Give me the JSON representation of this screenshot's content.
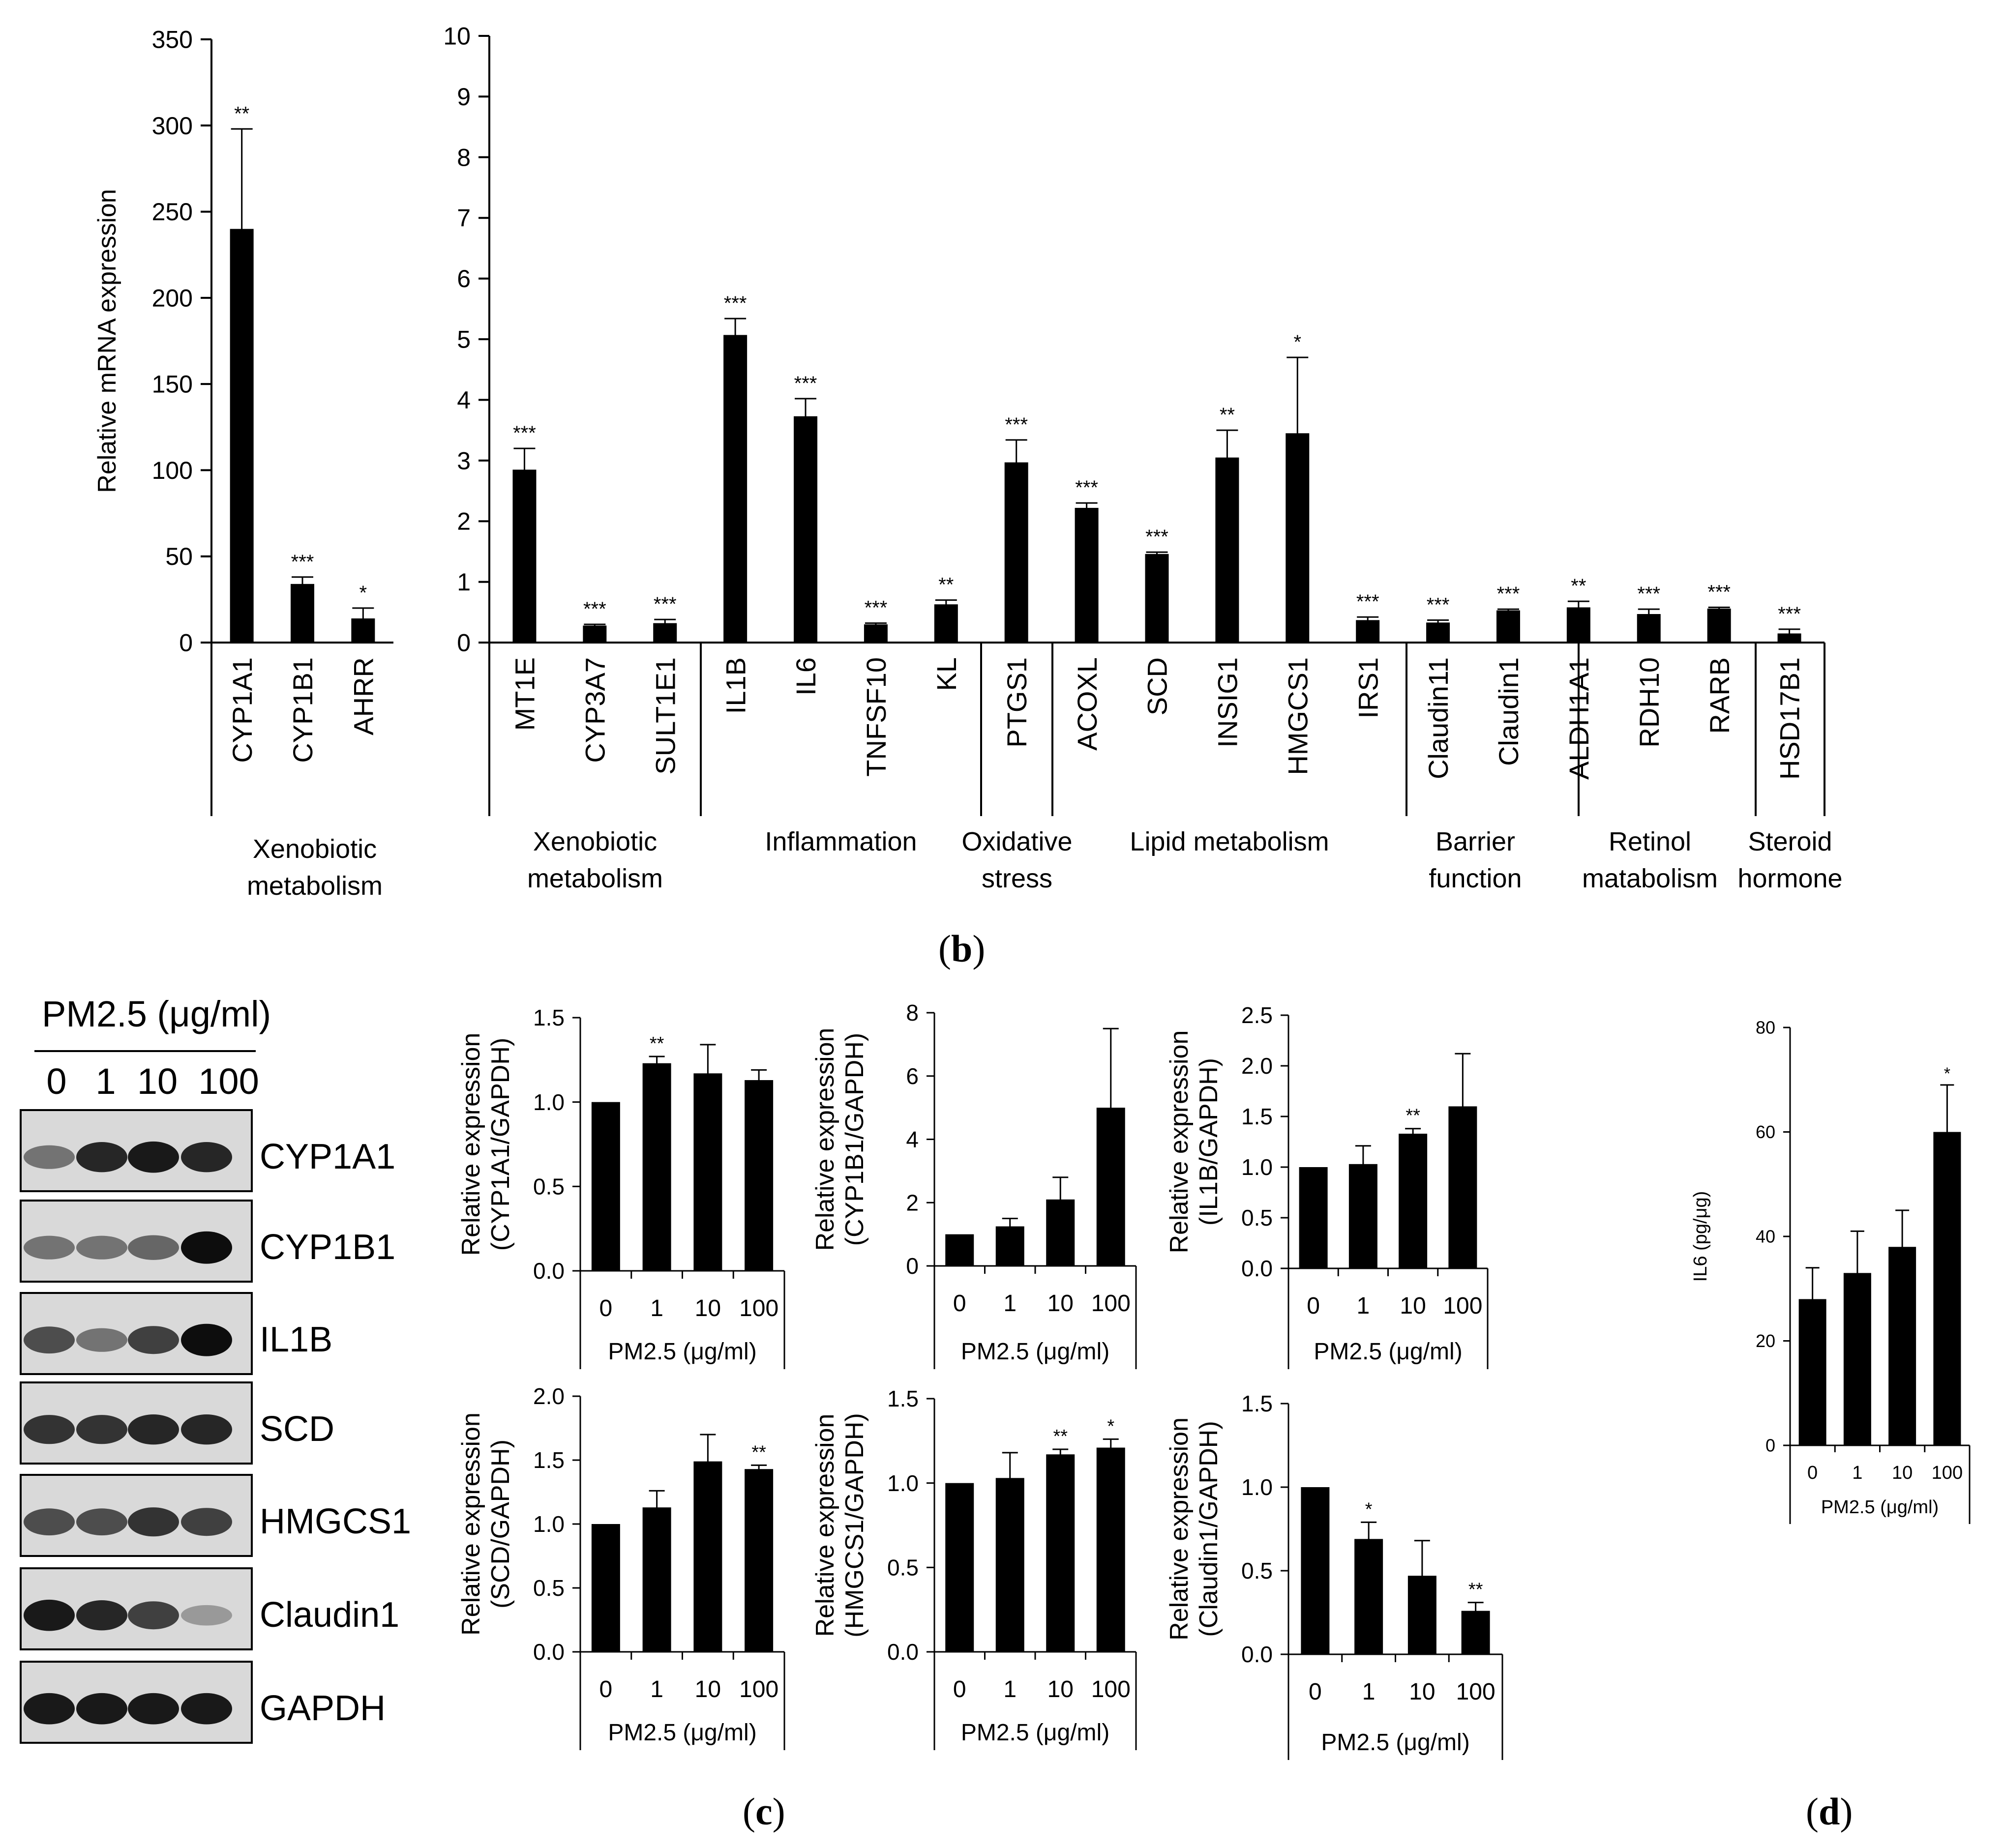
{
  "panel_labels": {
    "b": "b",
    "c": "c",
    "d": "d"
  },
  "chart_data": [
    {
      "id": "b1",
      "type": "bar",
      "ylabel": "Relative mRNA expression",
      "ylim": [
        0,
        350
      ],
      "yticks": [
        0,
        50,
        100,
        150,
        200,
        250,
        300,
        350
      ],
      "categories": [
        "CYP1A1",
        "CYP1B1",
        "AHRR"
      ],
      "values": [
        240,
        34,
        14
      ],
      "errors": [
        58,
        4,
        6
      ],
      "significance": [
        "**",
        "***",
        "*"
      ],
      "groups": [
        {
          "label": [
            "Xenobiotic",
            "metabolism"
          ],
          "start": 0,
          "end": 2
        }
      ]
    },
    {
      "id": "b2",
      "type": "bar",
      "ylim": [
        0,
        10
      ],
      "yticks": [
        0,
        1,
        2,
        3,
        4,
        5,
        6,
        7,
        8,
        9,
        10
      ],
      "categories": [
        "MT1E",
        "CYP3A7",
        "SULT1E1",
        "IL1B",
        "IL6",
        "TNFSF10",
        "KL",
        "PTGS1",
        "ACOXL",
        "SCD",
        "INSIG1",
        "HMGCS1",
        "IRS1",
        "Claudin11",
        "Claudin1",
        "ALDH1A1",
        "RDH10",
        "RARB",
        "HSD17B1"
      ],
      "values": [
        2.85,
        0.28,
        0.32,
        5.07,
        3.73,
        0.3,
        0.63,
        2.97,
        2.22,
        1.46,
        3.05,
        3.45,
        0.37,
        0.33,
        0.53,
        0.58,
        0.47,
        0.56,
        0.15
      ],
      "errors": [
        0.35,
        0.02,
        0.06,
        0.27,
        0.29,
        0.02,
        0.07,
        0.37,
        0.08,
        0.03,
        0.45,
        1.25,
        0.05,
        0.04,
        0.02,
        0.1,
        0.08,
        0.02,
        0.07
      ],
      "significance": [
        "***",
        "***",
        "***",
        "***",
        "***",
        "***",
        "**",
        "***",
        "***",
        "***",
        "**",
        "*",
        "***",
        "***",
        "***",
        "**",
        "***",
        "***",
        "***"
      ],
      "groups": [
        {
          "label": [
            "Xenobiotic",
            "metabolism"
          ],
          "start": 0,
          "end": 2
        },
        {
          "label": [
            "Inflammation"
          ],
          "start": 3,
          "end": 6
        },
        {
          "label": [
            "Oxidative",
            "stress"
          ],
          "start": 7,
          "end": 7
        },
        {
          "label": [
            "Lipid metabolism"
          ],
          "start": 8,
          "end": 12
        },
        {
          "label": [
            "Barrier",
            "function"
          ],
          "start": 13,
          "end": 14
        },
        {
          "label": [
            "Retinol",
            "matabolism"
          ],
          "start": 15,
          "end": 17
        },
        {
          "label": [
            "Steroid",
            "hormone"
          ],
          "start": 18,
          "end": 18
        }
      ]
    },
    {
      "id": "c1",
      "type": "bar",
      "ylabel": [
        "Relative expression",
        "(CYP1A1/GAPDH)"
      ],
      "xlabel": "PM2.5 (μg/ml)",
      "categories": [
        "0",
        "1",
        "10",
        "100"
      ],
      "ylim": [
        0,
        1.5
      ],
      "yticks": [
        "0.0",
        "0.5",
        "1.0",
        "1.5"
      ],
      "values": [
        1.0,
        1.23,
        1.17,
        1.13
      ],
      "errors": [
        0,
        0.04,
        0.17,
        0.06
      ],
      "significance": [
        "",
        "**",
        "",
        ""
      ]
    },
    {
      "id": "c2",
      "type": "bar",
      "ylabel": [
        "Relative expression",
        "(CYP1B1/GAPDH)"
      ],
      "xlabel": "PM2.5 (μg/ml)",
      "categories": [
        "0",
        "1",
        "10",
        "100"
      ],
      "ylim": [
        0,
        8
      ],
      "yticks": [
        "0",
        "2",
        "4",
        "6",
        "8"
      ],
      "values": [
        1.0,
        1.25,
        2.1,
        5.0
      ],
      "errors": [
        0,
        0.25,
        0.7,
        2.5
      ],
      "significance": [
        "",
        "",
        "",
        ""
      ]
    },
    {
      "id": "c3",
      "type": "bar",
      "ylabel": [
        "Relative expression",
        "(IL1B/GAPDH)"
      ],
      "xlabel": "PM2.5 (μg/ml)",
      "categories": [
        "0",
        "1",
        "10",
        "100"
      ],
      "ylim": [
        0,
        2.5
      ],
      "yticks": [
        "0.0",
        "0.5",
        "1.0",
        "1.5",
        "2.0",
        "2.5"
      ],
      "values": [
        1.0,
        1.03,
        1.33,
        1.6
      ],
      "errors": [
        0,
        0.18,
        0.05,
        0.52
      ],
      "significance": [
        "",
        "",
        "**",
        ""
      ]
    },
    {
      "id": "c4",
      "type": "bar",
      "ylabel": [
        "Relative expression",
        "(SCD/GAPDH)"
      ],
      "xlabel": "PM2.5 (μg/ml)",
      "categories": [
        "0",
        "1",
        "10",
        "100"
      ],
      "ylim": [
        0,
        2.0
      ],
      "yticks": [
        "0.0",
        "0.5",
        "1.0",
        "1.5",
        "2.0"
      ],
      "values": [
        1.0,
        1.13,
        1.49,
        1.43
      ],
      "errors": [
        0,
        0.13,
        0.21,
        0.03
      ],
      "significance": [
        "",
        "",
        "",
        "**"
      ]
    },
    {
      "id": "c5",
      "type": "bar",
      "ylabel": [
        "Relative expression",
        "(HMGCS1/GAPDH)"
      ],
      "xlabel": "PM2.5 (μg/ml)",
      "categories": [
        "0",
        "1",
        "10",
        "100"
      ],
      "ylim": [
        0,
        1.5
      ],
      "yticks": [
        "0.0",
        "0.5",
        "1.0",
        "1.5"
      ],
      "values": [
        1.0,
        1.03,
        1.17,
        1.21
      ],
      "errors": [
        0,
        0.15,
        0.03,
        0.05
      ],
      "significance": [
        "",
        "",
        "**",
        "*"
      ]
    },
    {
      "id": "c6",
      "type": "bar",
      "ylabel": [
        "Relative expression",
        "(Claudin1/GAPDH)"
      ],
      "xlabel": "PM2.5 (μg/ml)",
      "categories": [
        "0",
        "1",
        "10",
        "100"
      ],
      "ylim": [
        0,
        1.5
      ],
      "yticks": [
        "0.0",
        "0.5",
        "1.0",
        "1.5"
      ],
      "values": [
        1.0,
        0.69,
        0.47,
        0.26
      ],
      "errors": [
        0,
        0.1,
        0.21,
        0.05
      ],
      "significance": [
        "",
        "*",
        "",
        "**"
      ]
    },
    {
      "id": "d1",
      "type": "bar",
      "ylabel": "IL6 (pg/μg)",
      "xlabel": "PM2.5 (μg/ml)",
      "categories": [
        "0",
        "1",
        "10",
        "100"
      ],
      "ylim": [
        0,
        80
      ],
      "yticks": [
        "0",
        "20",
        "40",
        "60",
        "80"
      ],
      "values": [
        28,
        33,
        38,
        60
      ],
      "errors": [
        6,
        8,
        7,
        9
      ],
      "significance": [
        "",
        "",
        "",
        "*"
      ]
    }
  ],
  "western_blot": {
    "title": "PM2.5 (μg/ml)",
    "lanes": [
      "0",
      "1",
      "10",
      "100"
    ],
    "proteins": [
      "CYP1A1",
      "CYP1B1",
      "IL1B",
      "SCD",
      "HMGCS1",
      "Claudin1",
      "GAPDH"
    ],
    "band_intensity": [
      [
        0.55,
        0.85,
        0.9,
        0.85
      ],
      [
        0.55,
        0.55,
        0.6,
        0.95
      ],
      [
        0.7,
        0.55,
        0.75,
        0.95
      ],
      [
        0.8,
        0.8,
        0.85,
        0.85
      ],
      [
        0.7,
        0.7,
        0.8,
        0.75
      ],
      [
        0.9,
        0.85,
        0.75,
        0.4
      ],
      [
        0.9,
        0.9,
        0.9,
        0.9
      ]
    ]
  }
}
